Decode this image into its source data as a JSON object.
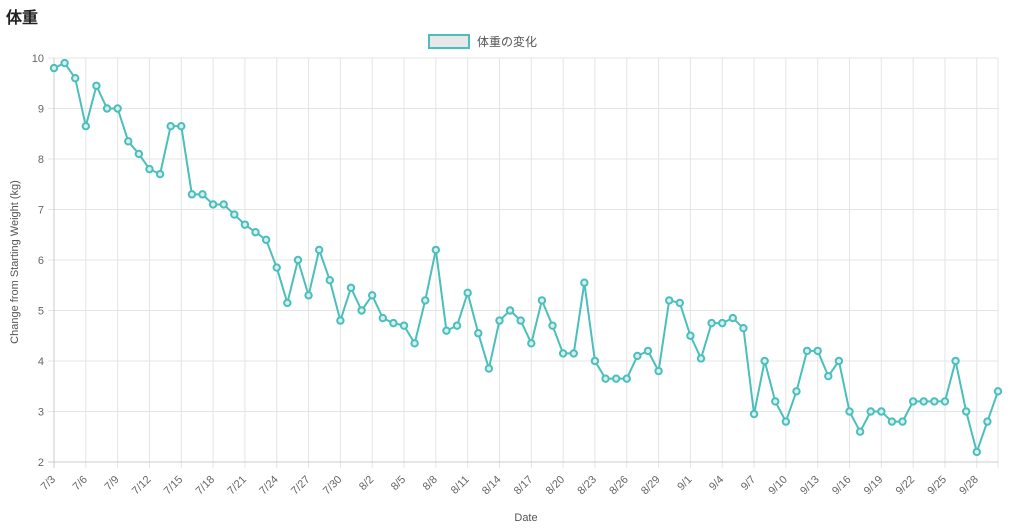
{
  "page": {
    "title": "体重"
  },
  "chart_data": {
    "type": "line",
    "title": "",
    "xlabel": "Date",
    "ylabel": "Change from Starting Weight (kg)",
    "ylim": [
      2,
      10
    ],
    "yticks": [
      2,
      3,
      4,
      5,
      6,
      7,
      8,
      9,
      10
    ],
    "grid": true,
    "legend_position": "top-center",
    "x_ticks": [
      "7/3",
      "7/6",
      "7/9",
      "7/12",
      "7/15",
      "7/18",
      "7/21",
      "7/24",
      "7/27",
      "7/30",
      "8/2",
      "8/5",
      "8/8",
      "8/11",
      "8/14",
      "8/17",
      "8/20",
      "8/23",
      "8/26",
      "8/29",
      "9/1",
      "9/4",
      "9/7",
      "9/10",
      "9/13",
      "9/16",
      "9/19",
      "9/22",
      "9/25",
      "9/28"
    ],
    "x": [
      "7/3",
      "7/4",
      "7/5",
      "7/6",
      "7/7",
      "7/8",
      "7/9",
      "7/10",
      "7/11",
      "7/12",
      "7/13",
      "7/14",
      "7/15",
      "7/16",
      "7/17",
      "7/18",
      "7/19",
      "7/20",
      "7/21",
      "7/22",
      "7/23",
      "7/24",
      "7/25",
      "7/26",
      "7/27",
      "7/28",
      "7/29",
      "7/30",
      "7/31",
      "8/1",
      "8/2",
      "8/3",
      "8/4",
      "8/5",
      "8/6",
      "8/7",
      "8/8",
      "8/9",
      "8/10",
      "8/11",
      "8/12",
      "8/13",
      "8/14",
      "8/15",
      "8/16",
      "8/17",
      "8/18",
      "8/19",
      "8/20",
      "8/21",
      "8/22",
      "8/23",
      "8/24",
      "8/25",
      "8/26",
      "8/27",
      "8/28",
      "8/29",
      "8/30",
      "8/31",
      "9/1",
      "9/2",
      "9/3",
      "9/4",
      "9/5",
      "9/6",
      "9/7",
      "9/8",
      "9/9",
      "9/10",
      "9/11",
      "9/12",
      "9/13",
      "9/14",
      "9/15",
      "9/16",
      "9/17",
      "9/18",
      "9/19",
      "9/20",
      "9/21",
      "9/22",
      "9/23",
      "9/24",
      "9/25",
      "9/26",
      "9/27",
      "9/28",
      "9/29",
      "9/30"
    ],
    "series": [
      {
        "name": "体重の変化",
        "color": "#4bbfbb",
        "values": [
          9.8,
          9.9,
          9.6,
          8.65,
          9.45,
          9.0,
          9.0,
          8.35,
          8.1,
          7.8,
          7.7,
          8.65,
          8.65,
          7.3,
          7.3,
          7.1,
          7.1,
          6.9,
          6.7,
          6.55,
          6.4,
          5.85,
          5.15,
          6.0,
          5.3,
          6.2,
          5.6,
          4.8,
          5.45,
          5.0,
          5.3,
          4.85,
          4.75,
          4.7,
          4.35,
          5.2,
          6.2,
          4.6,
          4.7,
          5.35,
          4.55,
          3.85,
          4.8,
          5.0,
          4.8,
          4.35,
          5.2,
          4.7,
          4.15,
          4.15,
          5.55,
          4.0,
          3.65,
          3.65,
          3.65,
          4.1,
          4.2,
          3.8,
          5.2,
          5.15,
          4.5,
          4.05,
          4.75,
          4.75,
          4.85,
          4.65,
          2.95,
          4.0,
          3.2,
          2.8,
          3.4,
          4.2,
          4.2,
          3.7,
          4.0,
          3.0,
          2.6,
          3.0,
          3.0,
          2.8,
          2.8,
          3.2,
          3.2,
          3.2,
          3.2,
          4.0,
          3.0,
          2.2,
          2.8,
          3.4
        ]
      }
    ]
  }
}
